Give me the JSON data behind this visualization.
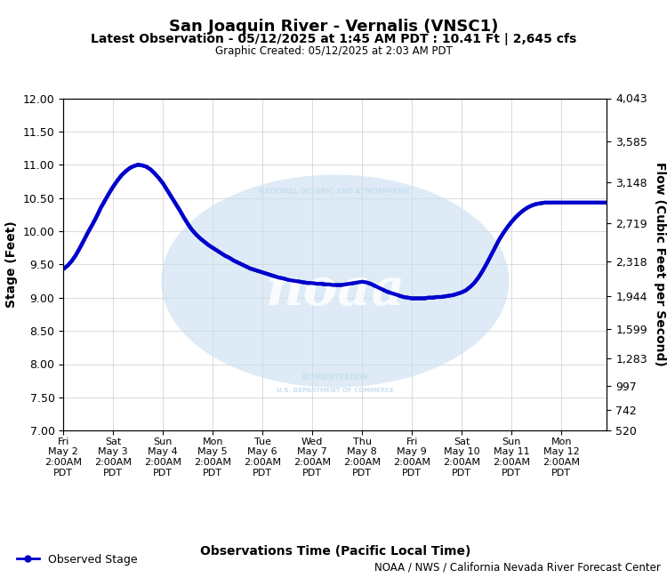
{
  "title1": "San Joaquin River - Vernalis (VNSC1)",
  "title2": "Latest Observation - 05/12/2025 at 1:45 AM PDT : 10.41 Ft | 2,645 cfs",
  "title3": "Graphic Created: 05/12/2025 at 2:03 AM PDT",
  "xlabel": "Observations Time (Pacific Local Time)",
  "ylabel_left": "Stage (Feet)",
  "ylabel_right": "Flow (Cubic Feet per Second)",
  "footnote": "NOAA / NWS / California Nevada River Forecast Center",
  "legend_label": "Observed Stage",
  "ylim_left": [
    7.0,
    12.0
  ],
  "ylim_right": [
    520,
    4043
  ],
  "yticks_left": [
    7.0,
    7.5,
    8.0,
    8.5,
    9.0,
    9.5,
    10.0,
    10.5,
    11.0,
    11.5,
    12.0
  ],
  "yticks_right": [
    520,
    742,
    997,
    1283,
    1599,
    1944,
    2318,
    2719,
    3148,
    3585,
    4043
  ],
  "xtick_labels": [
    "Fri\nMay 2\n2:00AM\nPDT",
    "Sat\nMay 3\n2:00AM\nPDT",
    "Sun\nMay 4\n2:00AM\nPDT",
    "Mon\nMay 5\n2:00AM\nPDT",
    "Tue\nMay 6\n2:00AM\nPDT",
    "Wed\nMay 7\n2:00AM\nPDT",
    "Thu\nMay 8\n2:00AM\nPDT",
    "Fri\nMay 9\n2:00AM\nPDT",
    "Sat\nMay 10\n2:00AM\nPDT",
    "Sun\nMay 11\n2:00AM\nPDT",
    "Mon\nMay 12\n2:00AM\nPDT"
  ],
  "line_color": "#0000CC",
  "line_width": 3.0,
  "background_color": "#ffffff",
  "plot_bg_color": "#ffffff",
  "watermark_color": "#c8dff0",
  "grid_color": "#cccccc",
  "x_data": [
    0.0,
    0.083,
    0.167,
    0.25,
    0.333,
    0.417,
    0.5,
    0.583,
    0.667,
    0.75,
    0.833,
    0.917,
    1.0,
    1.083,
    1.167,
    1.25,
    1.333,
    1.417,
    1.5,
    1.583,
    1.667,
    1.75,
    1.833,
    1.917,
    2.0,
    2.083,
    2.167,
    2.25,
    2.333,
    2.417,
    2.5,
    2.583,
    2.667,
    2.75,
    2.833,
    2.917,
    3.0,
    3.083,
    3.167,
    3.25,
    3.333,
    3.417,
    3.5,
    3.583,
    3.667,
    3.75,
    3.833,
    3.917,
    4.0,
    4.083,
    4.167,
    4.25,
    4.333,
    4.417,
    4.5,
    4.583,
    4.667,
    4.75,
    4.833,
    4.917,
    5.0,
    5.083,
    5.167,
    5.25,
    5.333,
    5.417,
    5.5,
    5.583,
    5.667,
    5.75,
    5.833,
    5.917,
    6.0,
    6.083,
    6.167,
    6.25,
    6.333,
    6.417,
    6.5,
    6.583,
    6.667,
    6.75,
    6.833,
    6.917,
    7.0,
    7.083,
    7.167,
    7.25,
    7.333,
    7.417,
    7.5,
    7.583,
    7.667,
    7.75,
    7.833,
    7.917,
    8.0,
    8.083,
    8.167,
    8.25,
    8.333,
    8.417,
    8.5,
    8.583,
    8.667,
    8.75,
    8.833,
    8.917,
    9.0,
    9.083,
    9.167,
    9.25,
    9.333,
    9.417,
    9.5,
    9.583,
    9.667,
    9.75,
    9.833,
    9.917,
    10.0,
    10.083,
    10.167,
    10.25,
    10.333,
    10.417,
    10.5,
    10.583,
    10.667,
    10.75,
    10.833,
    10.917
  ],
  "y_data": [
    9.43,
    9.48,
    9.55,
    9.64,
    9.75,
    9.87,
    9.99,
    10.1,
    10.22,
    10.35,
    10.46,
    10.57,
    10.67,
    10.76,
    10.84,
    10.9,
    10.95,
    10.98,
    11.0,
    10.99,
    10.97,
    10.93,
    10.87,
    10.8,
    10.72,
    10.62,
    10.52,
    10.42,
    10.32,
    10.21,
    10.11,
    10.02,
    9.95,
    9.89,
    9.84,
    9.79,
    9.75,
    9.71,
    9.67,
    9.63,
    9.6,
    9.56,
    9.53,
    9.5,
    9.47,
    9.44,
    9.42,
    9.4,
    9.38,
    9.36,
    9.34,
    9.32,
    9.3,
    9.29,
    9.27,
    9.26,
    9.25,
    9.24,
    9.23,
    9.22,
    9.22,
    9.21,
    9.21,
    9.2,
    9.2,
    9.19,
    9.19,
    9.19,
    9.2,
    9.21,
    9.22,
    9.23,
    9.24,
    9.23,
    9.21,
    9.18,
    9.15,
    9.12,
    9.09,
    9.07,
    9.05,
    9.03,
    9.01,
    9.0,
    8.99,
    8.99,
    8.99,
    8.99,
    9.0,
    9.0,
    9.01,
    9.01,
    9.02,
    9.03,
    9.04,
    9.06,
    9.08,
    9.11,
    9.16,
    9.22,
    9.3,
    9.4,
    9.51,
    9.63,
    9.75,
    9.87,
    9.97,
    10.06,
    10.14,
    10.21,
    10.27,
    10.32,
    10.36,
    10.39,
    10.41,
    10.42,
    10.43,
    10.43,
    10.43,
    10.43,
    10.43,
    10.43,
    10.43,
    10.43,
    10.43,
    10.43,
    10.43,
    10.43,
    10.43,
    10.43,
    10.43,
    10.43
  ]
}
